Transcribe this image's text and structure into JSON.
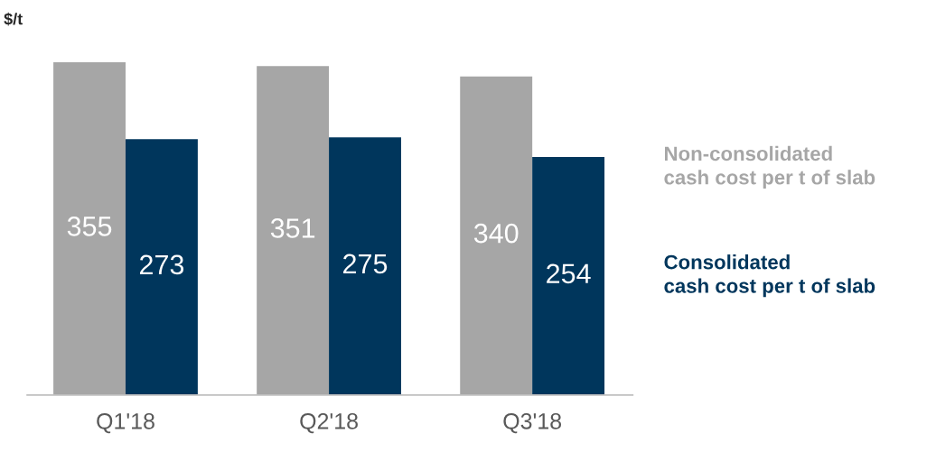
{
  "chart_data": {
    "type": "bar",
    "ylabel": "$/t",
    "categories": [
      "Q1'18",
      "Q2'18",
      "Q3'18"
    ],
    "series": [
      {
        "name": "Non-consolidated\ncash cost per t of slab",
        "color": "#a6a6a6",
        "values": [
          355,
          351,
          340
        ]
      },
      {
        "name": "Consolidated\ncash cost per t of slab",
        "color": "#00365c",
        "values": [
          273,
          275,
          254
        ]
      }
    ],
    "data_labels": true,
    "legend": "right",
    "grid": false
  }
}
